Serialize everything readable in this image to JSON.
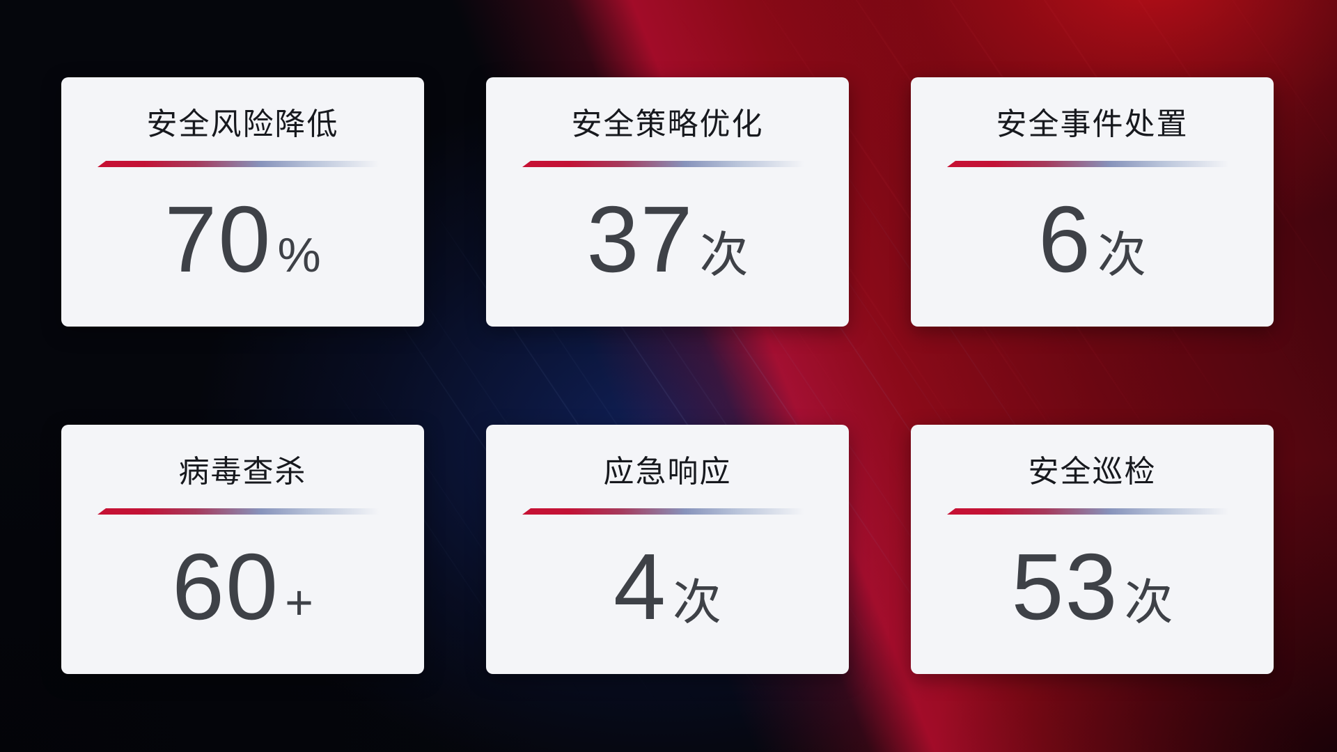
{
  "chart_data": {
    "type": "table",
    "title": "",
    "categories": [
      "安全风险降低",
      "安全策略优化",
      "安全事件处置",
      "病毒查杀",
      "应急响应",
      "安全巡检"
    ],
    "values": [
      70,
      37,
      6,
      60,
      4,
      53
    ],
    "units": [
      "%",
      "次",
      "次",
      "+",
      "次",
      "次"
    ],
    "value_display": [
      "70%",
      "37次",
      "6次",
      "60+",
      "4次",
      "53次"
    ],
    "legend_position": "none",
    "grid": false
  },
  "theme": {
    "card_background": "#f4f5f8",
    "title_color": "#17191e",
    "value_color": "#3e4147",
    "accent_red": "#c61134",
    "divider_blue_gray": "#8793bb",
    "background_base": "#05060c",
    "background_red": "#9c0c16",
    "background_navy": "#11225e"
  },
  "cards": [
    {
      "title": "安全风险降低",
      "value": "70",
      "unit": "%"
    },
    {
      "title": "安全策略优化",
      "value": "37",
      "unit": "次"
    },
    {
      "title": "安全事件处置",
      "value": "6",
      "unit": "次"
    },
    {
      "title": "病毒查杀",
      "value": "60",
      "unit": "+"
    },
    {
      "title": "应急响应",
      "value": "4",
      "unit": "次"
    },
    {
      "title": "安全巡检",
      "value": "53",
      "unit": "次"
    }
  ]
}
